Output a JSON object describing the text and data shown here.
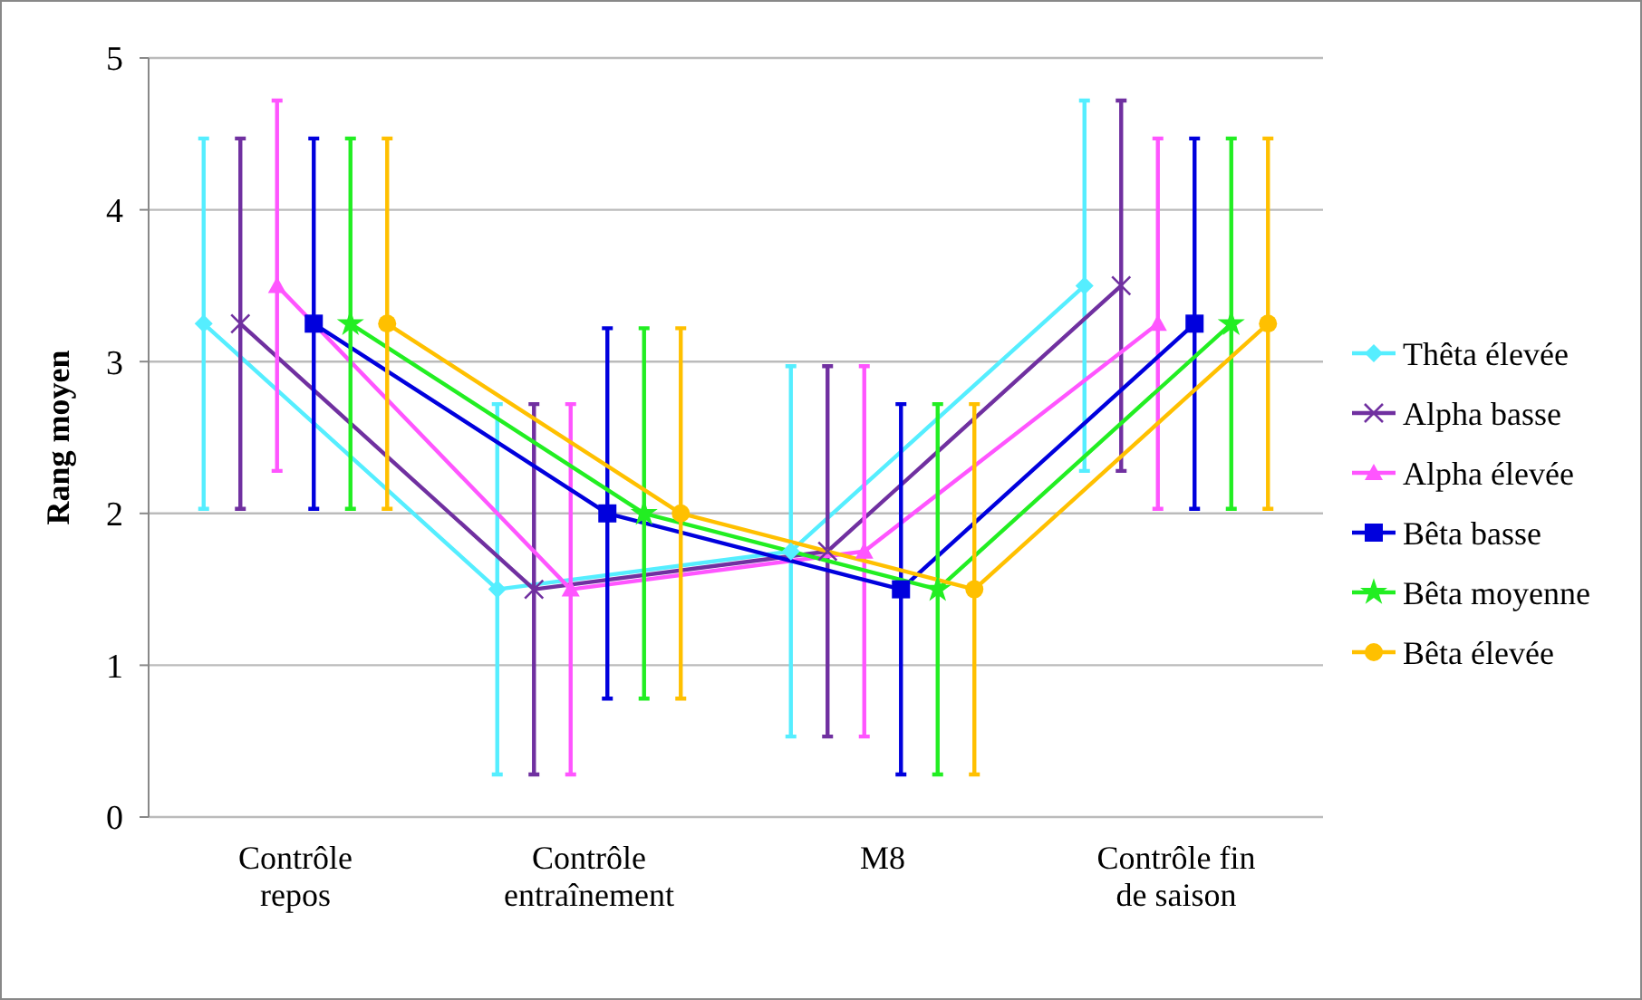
{
  "chart_data": {
    "type": "line",
    "ylabel": "Rang moyen",
    "categories": [
      "Contrôle\nrepos",
      "Contrôle\nentraînement",
      "M8",
      "Contrôle fin\nde saison"
    ],
    "ylim": [
      0,
      5
    ],
    "yticks": [
      0,
      1,
      2,
      3,
      4,
      5
    ],
    "grid": "y",
    "legend": "right",
    "series": [
      {
        "name": "Thêta élevée",
        "color": "#55eeff",
        "marker": "diamond",
        "values": [
          3.25,
          1.5,
          1.75,
          3.5
        ],
        "errors": [
          1.22,
          1.22,
          1.22,
          1.22
        ]
      },
      {
        "name": "Alpha basse",
        "color": "#7030a0",
        "marker": "cross",
        "values": [
          3.25,
          1.5,
          1.75,
          3.5
        ],
        "errors": [
          1.22,
          1.22,
          1.22,
          1.22
        ]
      },
      {
        "name": "Alpha élevée",
        "color": "#ff55ff",
        "marker": "triangle",
        "values": [
          3.5,
          1.5,
          1.75,
          3.25
        ],
        "errors": [
          1.22,
          1.22,
          1.22,
          1.22
        ]
      },
      {
        "name": "Bêta basse",
        "color": "#0000dd",
        "marker": "square",
        "values": [
          3.25,
          2,
          1.5,
          3.25
        ],
        "errors": [
          1.22,
          1.22,
          1.22,
          1.22
        ]
      },
      {
        "name": "Bêta moyenne",
        "color": "#22ee22",
        "marker": "star",
        "values": [
          3.25,
          2,
          1.5,
          3.25
        ],
        "errors": [
          1.22,
          1.22,
          1.22,
          1.22
        ]
      },
      {
        "name": "Bêta élevée",
        "color": "#ffc000",
        "marker": "circle",
        "values": [
          3.25,
          2,
          1.5,
          3.25
        ],
        "errors": [
          1.22,
          1.22,
          1.22,
          1.22
        ]
      }
    ]
  }
}
